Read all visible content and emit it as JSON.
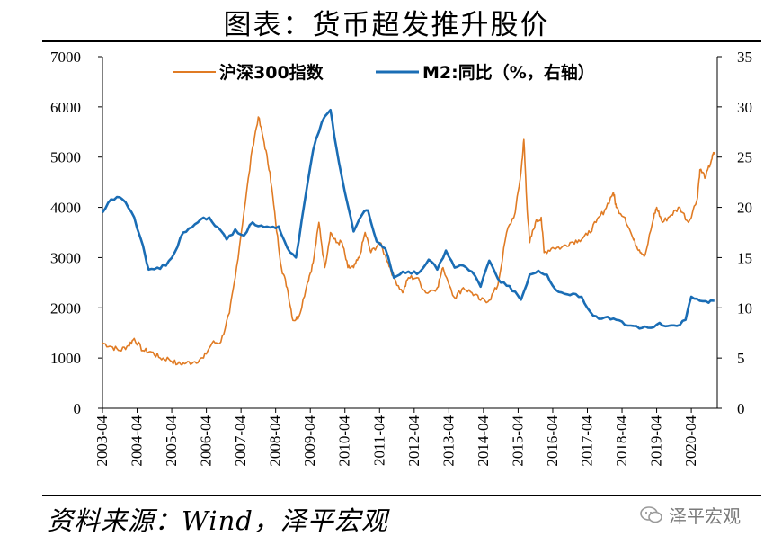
{
  "title": "图表：货币超发推升股价",
  "source": "资料来源：Wind，泽平宏观",
  "watermark": "泽平宏观",
  "colors": {
    "csi300": "#e07b24",
    "m2": "#1a6db5",
    "axis": "#000000"
  },
  "chart_data": {
    "type": "line",
    "x_tick_labels": [
      "2003-04",
      "2004-04",
      "2005-04",
      "2006-04",
      "2007-04",
      "2008-04",
      "2009-04",
      "2010-04",
      "2011-04",
      "2012-04",
      "2013-04",
      "2014-04",
      "2015-04",
      "2016-04",
      "2017-04",
      "2018-04",
      "2019-04",
      "2020-04"
    ],
    "x_range": [
      "2003-04",
      "2021-01"
    ],
    "left_axis": {
      "ticks": [
        "0",
        "1000",
        "2000",
        "3000",
        "4000",
        "5000",
        "6000",
        "7000"
      ],
      "ylim": [
        0,
        7000
      ]
    },
    "right_axis": {
      "ticks": [
        "0",
        "5",
        "10",
        "15",
        "20",
        "25",
        "30",
        "35"
      ],
      "ylim": [
        0,
        35
      ]
    },
    "legend_placement": "top",
    "series": [
      {
        "name": "沪深300指数",
        "axis": "left",
        "color": "#e07b24",
        "points": [
          [
            "2003-04",
            1300
          ],
          [
            "2003-07",
            1230
          ],
          [
            "2003-10",
            1150
          ],
          [
            "2004-01",
            1250
          ],
          [
            "2004-03",
            1390
          ],
          [
            "2004-06",
            1150
          ],
          [
            "2004-09",
            1120
          ],
          [
            "2004-12",
            1000
          ],
          [
            "2005-03",
            980
          ],
          [
            "2005-06",
            880
          ],
          [
            "2005-09",
            900
          ],
          [
            "2005-12",
            930
          ],
          [
            "2006-03",
            1000
          ],
          [
            "2006-06",
            1300
          ],
          [
            "2006-09",
            1320
          ],
          [
            "2006-12",
            1900
          ],
          [
            "2007-02",
            2600
          ],
          [
            "2007-05",
            3900
          ],
          [
            "2007-08",
            5200
          ],
          [
            "2007-10",
            5800
          ],
          [
            "2007-12",
            5300
          ],
          [
            "2008-02",
            4700
          ],
          [
            "2008-04",
            3700
          ],
          [
            "2008-06",
            2800
          ],
          [
            "2008-08",
            2400
          ],
          [
            "2008-10",
            1750
          ],
          [
            "2008-12",
            1820
          ],
          [
            "2009-03",
            2500
          ],
          [
            "2009-05",
            2900
          ],
          [
            "2009-07",
            3700
          ],
          [
            "2009-09",
            2800
          ],
          [
            "2009-11",
            3500
          ],
          [
            "2010-01",
            3300
          ],
          [
            "2010-03",
            3300
          ],
          [
            "2010-05",
            2800
          ],
          [
            "2010-07",
            2800
          ],
          [
            "2010-09",
            3000
          ],
          [
            "2010-11",
            3500
          ],
          [
            "2011-01",
            3100
          ],
          [
            "2011-04",
            3300
          ],
          [
            "2011-07",
            2900
          ],
          [
            "2011-09",
            2600
          ],
          [
            "2011-12",
            2300
          ],
          [
            "2012-02",
            2600
          ],
          [
            "2012-05",
            2600
          ],
          [
            "2012-08",
            2300
          ],
          [
            "2012-12",
            2400
          ],
          [
            "2013-02",
            2800
          ],
          [
            "2013-06",
            2200
          ],
          [
            "2013-09",
            2400
          ],
          [
            "2013-12",
            2300
          ],
          [
            "2014-03",
            2150
          ],
          [
            "2014-06",
            2150
          ],
          [
            "2014-09",
            2450
          ],
          [
            "2014-12",
            3500
          ],
          [
            "2015-03",
            3900
          ],
          [
            "2015-05",
            4700
          ],
          [
            "2015-06",
            5350
          ],
          [
            "2015-07",
            4100
          ],
          [
            "2015-08",
            3300
          ],
          [
            "2015-10",
            3700
          ],
          [
            "2015-12",
            3800
          ],
          [
            "2016-01",
            3100
          ],
          [
            "2016-04",
            3200
          ],
          [
            "2016-07",
            3200
          ],
          [
            "2016-10",
            3300
          ],
          [
            "2017-01",
            3350
          ],
          [
            "2017-04",
            3450
          ],
          [
            "2017-07",
            3700
          ],
          [
            "2017-10",
            3950
          ],
          [
            "2018-01",
            4300
          ],
          [
            "2018-02",
            4000
          ],
          [
            "2018-05",
            3800
          ],
          [
            "2018-08",
            3350
          ],
          [
            "2018-10",
            3150
          ],
          [
            "2018-12",
            3050
          ],
          [
            "2019-03",
            3800
          ],
          [
            "2019-04",
            4000
          ],
          [
            "2019-06",
            3700
          ],
          [
            "2019-09",
            3850
          ],
          [
            "2019-12",
            4000
          ],
          [
            "2020-03",
            3700
          ],
          [
            "2020-06",
            4150
          ],
          [
            "2020-07",
            4750
          ],
          [
            "2020-09",
            4600
          ],
          [
            "2020-11",
            4950
          ],
          [
            "2020-12",
            5100
          ]
        ]
      },
      {
        "name": "M2:同比（%，右轴）",
        "axis": "right",
        "color": "#1a6db5",
        "points": [
          [
            "2003-04",
            19.5
          ],
          [
            "2003-07",
            20.8
          ],
          [
            "2003-10",
            21.0
          ],
          [
            "2003-12",
            20.5
          ],
          [
            "2004-03",
            19.0
          ],
          [
            "2004-06",
            16.2
          ],
          [
            "2004-08",
            13.8
          ],
          [
            "2004-11",
            14.0
          ],
          [
            "2005-02",
            14.2
          ],
          [
            "2005-05",
            15.5
          ],
          [
            "2005-08",
            17.5
          ],
          [
            "2005-11",
            18.0
          ],
          [
            "2006-02",
            18.8
          ],
          [
            "2006-05",
            19.0
          ],
          [
            "2006-08",
            18.0
          ],
          [
            "2006-11",
            16.8
          ],
          [
            "2007-02",
            17.8
          ],
          [
            "2007-05",
            17.2
          ],
          [
            "2007-08",
            18.5
          ],
          [
            "2007-11",
            18.2
          ],
          [
            "2008-02",
            18.0
          ],
          [
            "2008-05",
            18.1
          ],
          [
            "2008-08",
            16.0
          ],
          [
            "2008-11",
            15.0
          ],
          [
            "2009-02",
            20.5
          ],
          [
            "2009-05",
            25.7
          ],
          [
            "2009-08",
            28.5
          ],
          [
            "2009-11",
            29.7
          ],
          [
            "2010-01",
            26.0
          ],
          [
            "2010-04",
            21.5
          ],
          [
            "2010-07",
            17.6
          ],
          [
            "2010-10",
            19.3
          ],
          [
            "2010-12",
            19.7
          ],
          [
            "2011-03",
            16.6
          ],
          [
            "2011-06",
            15.9
          ],
          [
            "2011-09",
            13.0
          ],
          [
            "2011-12",
            13.6
          ],
          [
            "2012-03",
            13.4
          ],
          [
            "2012-06",
            13.6
          ],
          [
            "2012-09",
            14.8
          ],
          [
            "2012-12",
            13.8
          ],
          [
            "2013-03",
            15.7
          ],
          [
            "2013-06",
            14.0
          ],
          [
            "2013-09",
            14.2
          ],
          [
            "2013-12",
            13.6
          ],
          [
            "2014-03",
            12.1
          ],
          [
            "2014-06",
            14.7
          ],
          [
            "2014-09",
            12.9
          ],
          [
            "2014-12",
            12.2
          ],
          [
            "2015-03",
            11.6
          ],
          [
            "2015-05",
            10.8
          ],
          [
            "2015-08",
            13.3
          ],
          [
            "2015-11",
            13.7
          ],
          [
            "2016-02",
            13.3
          ],
          [
            "2016-05",
            11.8
          ],
          [
            "2016-08",
            11.4
          ],
          [
            "2016-11",
            11.4
          ],
          [
            "2017-02",
            11.1
          ],
          [
            "2017-05",
            9.6
          ],
          [
            "2017-08",
            8.9
          ],
          [
            "2017-11",
            9.1
          ],
          [
            "2018-02",
            8.8
          ],
          [
            "2018-05",
            8.3
          ],
          [
            "2018-08",
            8.2
          ],
          [
            "2018-11",
            8.0
          ],
          [
            "2019-02",
            8.0
          ],
          [
            "2019-05",
            8.5
          ],
          [
            "2019-08",
            8.2
          ],
          [
            "2019-11",
            8.2
          ],
          [
            "2020-02",
            8.8
          ],
          [
            "2020-04",
            11.1
          ],
          [
            "2020-07",
            10.7
          ],
          [
            "2020-10",
            10.5
          ],
          [
            "2020-12",
            10.7
          ]
        ]
      }
    ]
  }
}
